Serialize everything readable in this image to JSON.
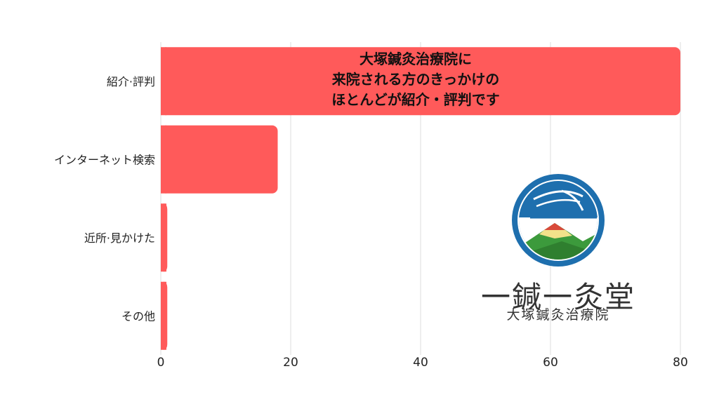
{
  "chart_data": {
    "type": "bar",
    "orientation": "horizontal",
    "categories": [
      "紹介·評判",
      "インターネット検索",
      "近所·見かけた",
      "その他"
    ],
    "values": [
      80,
      18,
      1,
      1
    ],
    "xlim": [
      0,
      80
    ],
    "xticks": [
      "0",
      "20",
      "40",
      "60",
      "80"
    ],
    "grid": true,
    "bar_color": "#ff5a5a",
    "annotation": [
      "大塚鍼灸治療院に",
      "来院される方のきっかけの",
      "ほとんどが紹介・評判です"
    ]
  },
  "logo": {
    "name": "一鍼一灸堂",
    "subtitle": "大塚鍼灸治療院",
    "colors": {
      "blue": "#1e6fae",
      "green": "#3c9a3c",
      "red": "#d94a3a"
    }
  }
}
